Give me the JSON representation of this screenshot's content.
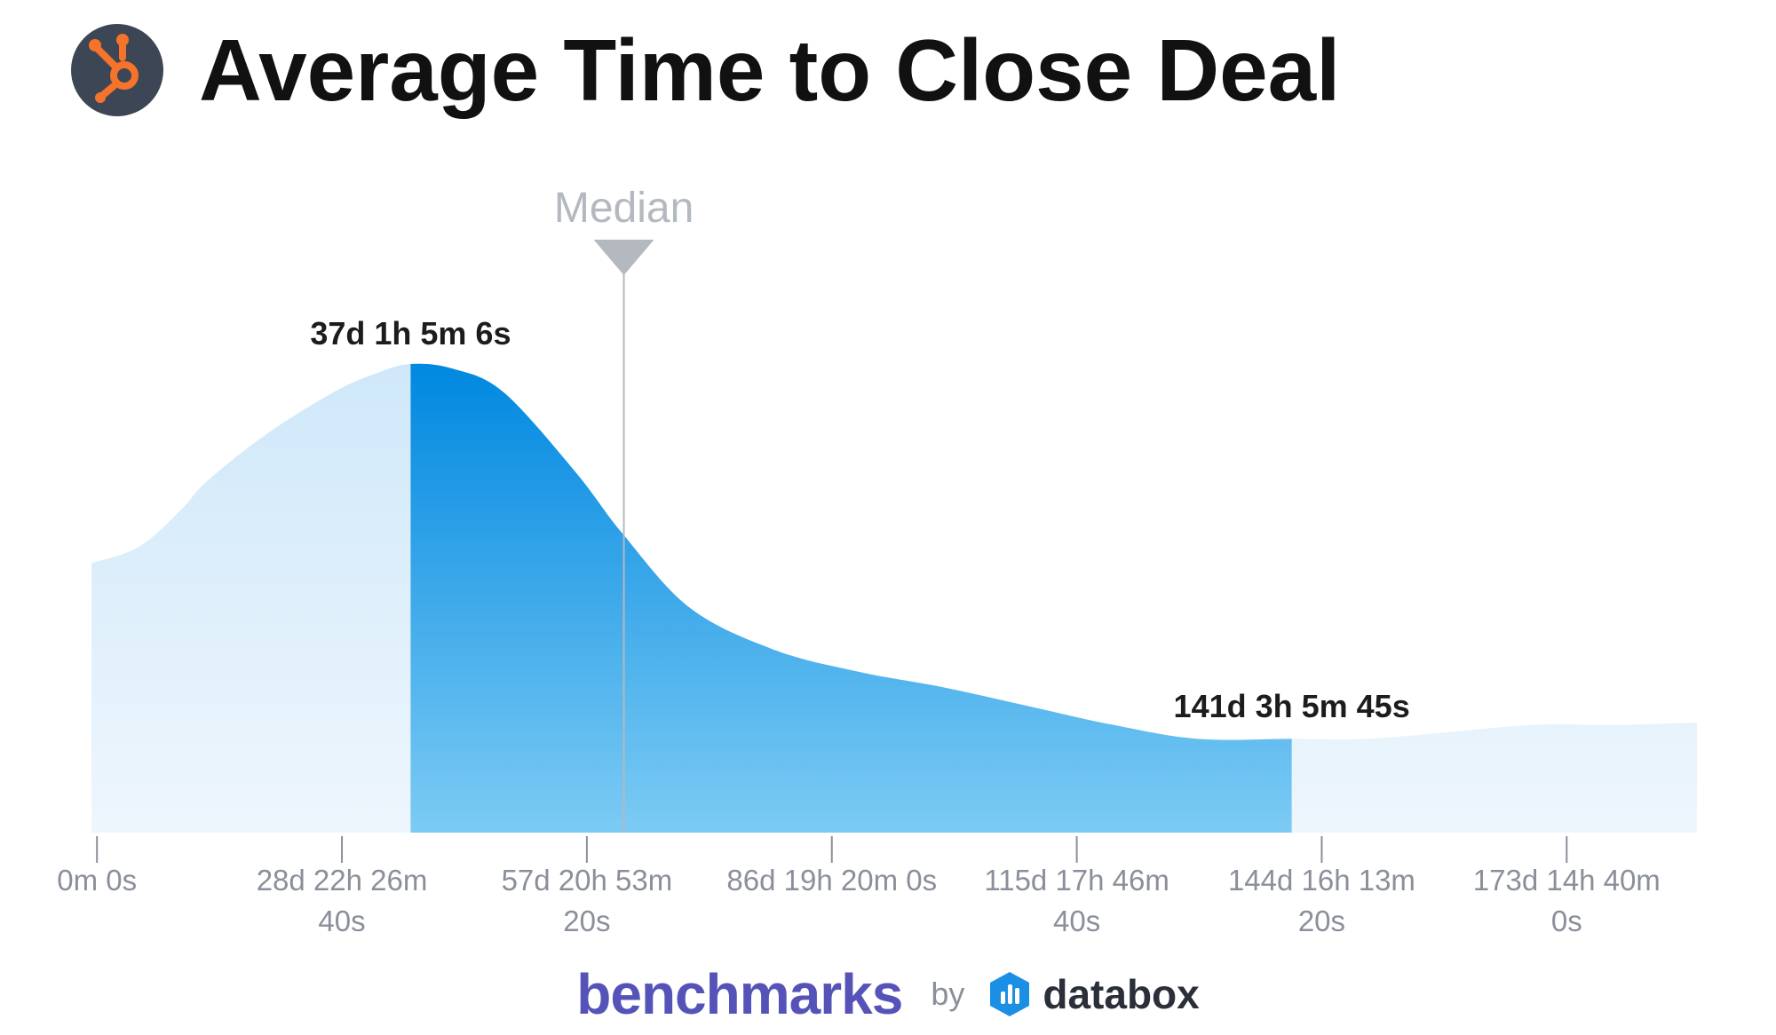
{
  "header": {
    "title": "Average Time to Close Deal",
    "logo_icon": "hubspot-sprocket-icon",
    "logo_bg": "#3d4654",
    "logo_fg": "#f5732a"
  },
  "chart_data": {
    "type": "area",
    "title": "Average Time to Close Deal",
    "xlabel": "",
    "ylabel": "",
    "x_ticks": [
      [
        "0m 0s"
      ],
      [
        "28d 22h 26m",
        "40s"
      ],
      [
        "57d 20h 53m",
        "20s"
      ],
      [
        "86d 19h 20m 0s"
      ],
      [
        "115d 17h 46m",
        "40s"
      ],
      [
        "144d 16h 13m",
        "20s"
      ],
      [
        "173d 14h 40m",
        "0s"
      ]
    ],
    "x_tick_values_days": [
      0,
      28.935,
      57.87,
      86.806,
      115.741,
      144.676,
      173.611
    ],
    "xlim_days": [
      -0.65,
      189
    ],
    "ylim": [
      0,
      1
    ],
    "distribution": {
      "x_days": [
        -0.65,
        5,
        10,
        13,
        20,
        28,
        33,
        37.05,
        42,
        48,
        56.5,
        62,
        70,
        80,
        90,
        100,
        110,
        120,
        130,
        141.13,
        150,
        160,
        170,
        180,
        189
      ],
      "density": [
        0.575,
        0.61,
        0.69,
        0.75,
        0.85,
        0.94,
        0.98,
        1.0,
        0.99,
        0.94,
        0.77,
        0.64,
        0.48,
        0.39,
        0.343,
        0.31,
        0.27,
        0.23,
        0.2,
        0.2,
        0.2,
        0.215,
        0.23,
        0.23,
        0.235
      ]
    },
    "highlight_range_days": [
      37.05,
      141.13
    ],
    "highlight_labels": [
      {
        "text": "37d 1h 5m 6s",
        "x_days": 37.05
      },
      {
        "text": "141d 3h 5m 45s",
        "x_days": 141.13
      }
    ],
    "median": {
      "label": "Median",
      "x_days": 62.24
    },
    "colors": {
      "light_fill_top": "#cfe8f9",
      "light_fill_bottom": "#eef6fd",
      "highlight_top": "#0088e0",
      "highlight_bottom": "#7ccbf4",
      "median_line": "#b4b8bf",
      "tick": "#8a8f9a"
    },
    "grid": false,
    "legend": "none"
  },
  "footer": {
    "brand_left": "benchmarks",
    "by": "by",
    "brand_right": "databox",
    "brand_icon": "databox-logo-icon"
  }
}
